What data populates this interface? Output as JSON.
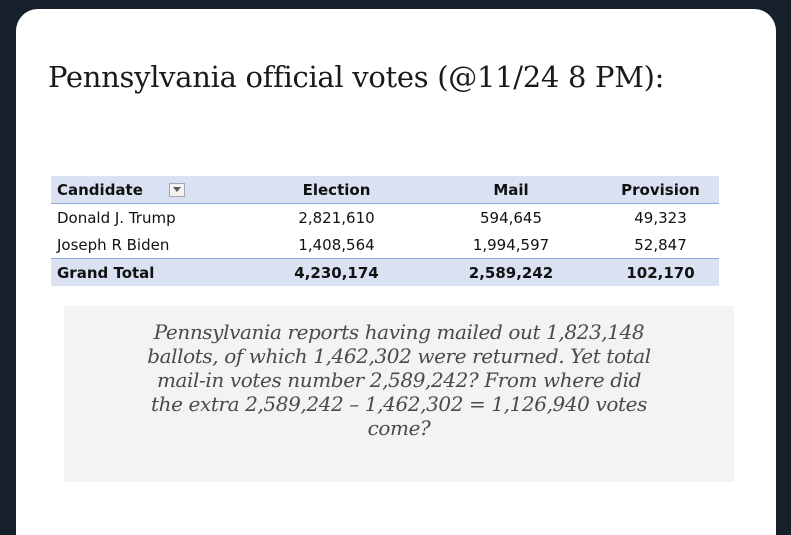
{
  "title": "Pennsylvania official votes (@11/24 8 PM):",
  "table": {
    "headers": [
      "Candidate",
      "Election",
      "Mail",
      "Provision"
    ],
    "filter_icon": "dropdown-filter-icon",
    "rows": [
      [
        "Donald J. Trump",
        "2,821,610",
        "594,645",
        "49,323"
      ],
      [
        "Joseph R Biden",
        "1,408,564",
        "1,994,597",
        "52,847"
      ]
    ],
    "total": [
      "Grand Total",
      "4,230,174",
      "2,589,242",
      "102,170"
    ]
  },
  "quote_lines": [
    "Pennsylvania reports having mailed out 1,823,148",
    "ballots, of which 1,462,302 were returned. Yet total",
    "mail-in votes number 2,589,242? From where did",
    "the extra 2,589,242 – 1,462,302 = 1,126,940 votes",
    "come?"
  ],
  "colors": {
    "background": "#15202b",
    "card": "#ffffff",
    "table_header": "#d9e1f2",
    "quote_box": "#f3f3f1",
    "quote_text": "#4a4a4a"
  }
}
